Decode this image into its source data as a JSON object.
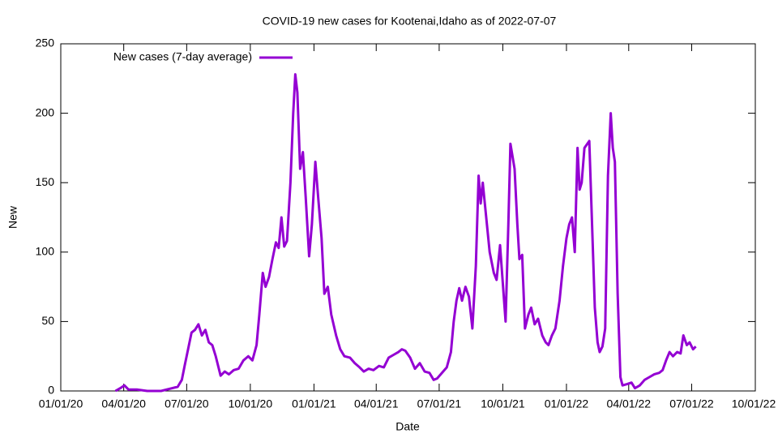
{
  "chart_data": {
    "type": "line",
    "title": "COVID-19 new cases for Kootenai,Idaho as of 2022-07-07",
    "x_label": "Date",
    "y_label": "New",
    "legend": "top-left",
    "x": [
      "2020-03-20",
      "2020-03-27",
      "2020-04-02",
      "2020-04-08",
      "2020-04-20",
      "2020-05-05",
      "2020-05-25",
      "2020-06-10",
      "2020-06-18",
      "2020-06-24",
      "2020-06-28",
      "2020-07-03",
      "2020-07-08",
      "2020-07-13",
      "2020-07-18",
      "2020-07-23",
      "2020-07-28",
      "2020-08-02",
      "2020-08-07",
      "2020-08-12",
      "2020-08-19",
      "2020-08-25",
      "2020-08-31",
      "2020-09-07",
      "2020-09-14",
      "2020-09-21",
      "2020-09-28",
      "2020-10-04",
      "2020-10-10",
      "2020-10-14",
      "2020-10-19",
      "2020-10-23",
      "2020-10-28",
      "2020-11-02",
      "2020-11-07",
      "2020-11-11",
      "2020-11-15",
      "2020-11-19",
      "2020-11-23",
      "2020-11-28",
      "2020-12-02",
      "2020-12-05",
      "2020-12-08",
      "2020-12-12",
      "2020-12-16",
      "2020-12-20",
      "2020-12-25",
      "2020-12-29",
      "2021-01-03",
      "2021-01-07",
      "2021-01-12",
      "2021-01-16",
      "2021-01-21",
      "2021-01-26",
      "2021-02-02",
      "2021-02-08",
      "2021-02-14",
      "2021-02-22",
      "2021-03-01",
      "2021-03-08",
      "2021-03-14",
      "2021-03-21",
      "2021-03-28",
      "2021-04-05",
      "2021-04-12",
      "2021-04-19",
      "2021-04-26",
      "2021-05-03",
      "2021-05-08",
      "2021-05-13",
      "2021-05-20",
      "2021-05-27",
      "2021-06-03",
      "2021-06-10",
      "2021-06-17",
      "2021-06-23",
      "2021-06-28",
      "2021-07-05",
      "2021-07-12",
      "2021-07-18",
      "2021-07-22",
      "2021-07-26",
      "2021-07-30",
      "2021-08-03",
      "2021-08-08",
      "2021-08-13",
      "2021-08-18",
      "2021-08-23",
      "2021-08-27",
      "2021-08-30",
      "2021-09-02",
      "2021-09-06",
      "2021-09-12",
      "2021-09-18",
      "2021-09-22",
      "2021-09-27",
      "2021-10-05",
      "2021-10-09",
      "2021-10-12",
      "2021-10-18",
      "2021-10-22",
      "2021-10-25",
      "2021-10-29",
      "2021-11-02",
      "2021-11-07",
      "2021-11-11",
      "2021-11-16",
      "2021-11-21",
      "2021-11-27",
      "2021-12-02",
      "2021-12-06",
      "2021-12-11",
      "2021-12-16",
      "2021-12-22",
      "2021-12-27",
      "2022-01-01",
      "2022-01-05",
      "2022-01-09",
      "2022-01-13",
      "2022-01-17",
      "2022-01-20",
      "2022-01-23",
      "2022-01-27",
      "2022-02-03",
      "2022-02-07",
      "2022-02-11",
      "2022-02-15",
      "2022-02-18",
      "2022-02-22",
      "2022-02-26",
      "2022-03-02",
      "2022-03-06",
      "2022-03-09",
      "2022-03-12",
      "2022-03-16",
      "2022-03-20",
      "2022-03-23",
      "2022-03-30",
      "2022-04-05",
      "2022-04-10",
      "2022-04-17",
      "2022-04-24",
      "2022-05-01",
      "2022-05-08",
      "2022-05-15",
      "2022-05-20",
      "2022-05-25",
      "2022-05-30",
      "2022-06-04",
      "2022-06-10",
      "2022-06-15",
      "2022-06-19",
      "2022-06-24",
      "2022-06-28",
      "2022-07-03",
      "2022-07-07"
    ],
    "series": [
      {
        "name": "New cases (7-day average)",
        "color": "#9400d3",
        "values": [
          0,
          2,
          4,
          1,
          1,
          0,
          0,
          2,
          3,
          8,
          18,
          30,
          42,
          44,
          48,
          40,
          44,
          35,
          33,
          25,
          11,
          14,
          12,
          15,
          16,
          22,
          25,
          22,
          33,
          55,
          85,
          75,
          82,
          95,
          107,
          103,
          125,
          104,
          108,
          150,
          200,
          228,
          215,
          160,
          172,
          140,
          97,
          120,
          165,
          140,
          110,
          70,
          75,
          55,
          40,
          30,
          25,
          24,
          20,
          17,
          14,
          16,
          15,
          18,
          17,
          24,
          26,
          28,
          30,
          29,
          24,
          16,
          20,
          14,
          13,
          8,
          9,
          13,
          17,
          28,
          50,
          65,
          74,
          65,
          75,
          68,
          45,
          90,
          155,
          135,
          150,
          130,
          100,
          85,
          80,
          105,
          50,
          120,
          178,
          160,
          120,
          95,
          98,
          45,
          55,
          60,
          48,
          52,
          40,
          35,
          33,
          40,
          45,
          65,
          90,
          110,
          120,
          125,
          100,
          175,
          145,
          150,
          175,
          180,
          120,
          60,
          35,
          28,
          32,
          45,
          155,
          200,
          175,
          165,
          70,
          10,
          4,
          5,
          6,
          2,
          4,
          8,
          10,
          12,
          13,
          15,
          22,
          28,
          25,
          28,
          27,
          40,
          33,
          35,
          30,
          32
        ]
      }
    ],
    "xlim": [
      "2020-01-01",
      "2022-10-01"
    ],
    "xticks": [
      {
        "value": "2020-01-01",
        "label": "01/01/20"
      },
      {
        "value": "2020-04-01",
        "label": "04/01/20"
      },
      {
        "value": "2020-07-01",
        "label": "07/01/20"
      },
      {
        "value": "2020-10-01",
        "label": "10/01/20"
      },
      {
        "value": "2021-01-01",
        "label": "01/01/21"
      },
      {
        "value": "2021-04-01",
        "label": "04/01/21"
      },
      {
        "value": "2021-07-01",
        "label": "07/01/21"
      },
      {
        "value": "2021-10-01",
        "label": "10/01/21"
      },
      {
        "value": "2022-01-01",
        "label": "01/01/22"
      },
      {
        "value": "2022-04-01",
        "label": "04/01/22"
      },
      {
        "value": "2022-07-01",
        "label": "07/01/22"
      },
      {
        "value": "2022-10-01",
        "label": "10/01/22"
      }
    ],
    "ylim": [
      0,
      250
    ],
    "yticks": [
      0,
      50,
      100,
      150,
      200,
      250
    ]
  }
}
